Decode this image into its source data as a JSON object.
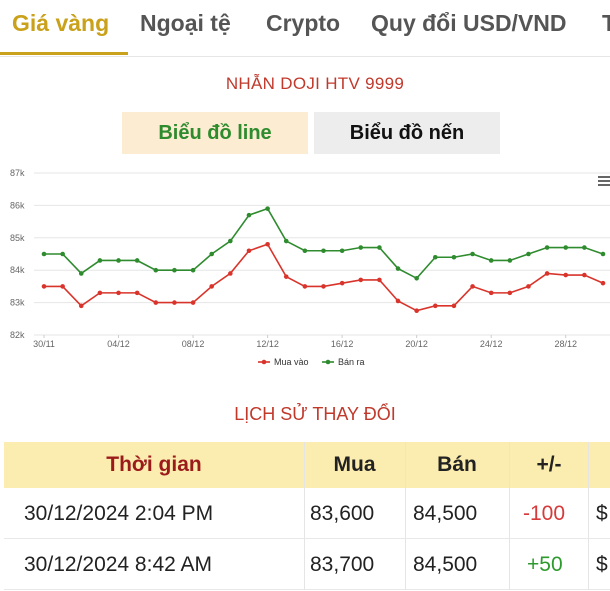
{
  "tabs": [
    {
      "label": "Giá vàng",
      "active": true
    },
    {
      "label": "Ngoại tệ",
      "active": false
    },
    {
      "label": "Crypto",
      "active": false
    },
    {
      "label": "Quy đổi USD/VND",
      "active": false
    },
    {
      "label": "T",
      "active": false
    }
  ],
  "product_title": "NHẪN DOJI HTV 9999",
  "chart_buttons": {
    "line": "Biểu đồ line",
    "candle": "Biểu đồ nến"
  },
  "colors": {
    "accent": "#c9a11b",
    "buy": "#d9342b",
    "sell": "#2e8b2e",
    "title": "#c0392b"
  },
  "chart_data": {
    "type": "line",
    "x": [
      "30/11",
      "01/12",
      "02/12",
      "03/12",
      "04/12",
      "05/12",
      "06/12",
      "07/12",
      "08/12",
      "09/12",
      "10/12",
      "11/12",
      "12/12",
      "13/12",
      "14/12",
      "15/12",
      "16/12",
      "17/12",
      "18/12",
      "19/12",
      "20/12",
      "21/12",
      "22/12",
      "23/12",
      "24/12",
      "25/12",
      "26/12",
      "27/12",
      "28/12",
      "29/12",
      "30/12"
    ],
    "x_tick_labels": [
      "30/11",
      "04/12",
      "08/12",
      "12/12",
      "16/12",
      "20/12",
      "24/12",
      "28/12"
    ],
    "series": [
      {
        "name": "Mua vào",
        "color": "#d9342b",
        "values": [
          83.5,
          83.5,
          82.9,
          83.3,
          83.3,
          83.3,
          83.0,
          83.0,
          83.0,
          83.5,
          83.9,
          84.6,
          84.8,
          83.8,
          83.5,
          83.5,
          83.6,
          83.7,
          83.7,
          83.05,
          82.75,
          82.9,
          82.9,
          83.5,
          83.3,
          83.3,
          83.5,
          83.9,
          83.85,
          83.85,
          83.6
        ]
      },
      {
        "name": "Bán ra",
        "color": "#2e8b2e",
        "values": [
          84.5,
          84.5,
          83.9,
          84.3,
          84.3,
          84.3,
          84.0,
          84.0,
          84.0,
          84.5,
          84.9,
          85.7,
          85.9,
          84.9,
          84.6,
          84.6,
          84.6,
          84.7,
          84.7,
          84.05,
          83.75,
          84.4,
          84.4,
          84.5,
          84.3,
          84.3,
          84.5,
          84.7,
          84.7,
          84.7,
          84.5
        ]
      }
    ],
    "y_ticks": [
      "82k",
      "83k",
      "84k",
      "85k",
      "86k",
      "87k"
    ],
    "ylim": [
      82,
      87
    ],
    "grid": true,
    "legend_position": "bottom-center"
  },
  "history": {
    "title": "LỊCH SỬ THAY ĐỔI",
    "headers": {
      "time": "Thời gian",
      "buy": "Mua",
      "sell": "Bán",
      "change": "+/-"
    },
    "rows": [
      {
        "time": "30/12/2024 2:04 PM",
        "buy": "83,600",
        "sell": "84,500",
        "change": "-100",
        "extra": "$"
      },
      {
        "time": "30/12/2024 8:42 AM",
        "buy": "83,700",
        "sell": "84,500",
        "change": "+50",
        "extra": "$"
      }
    ]
  }
}
